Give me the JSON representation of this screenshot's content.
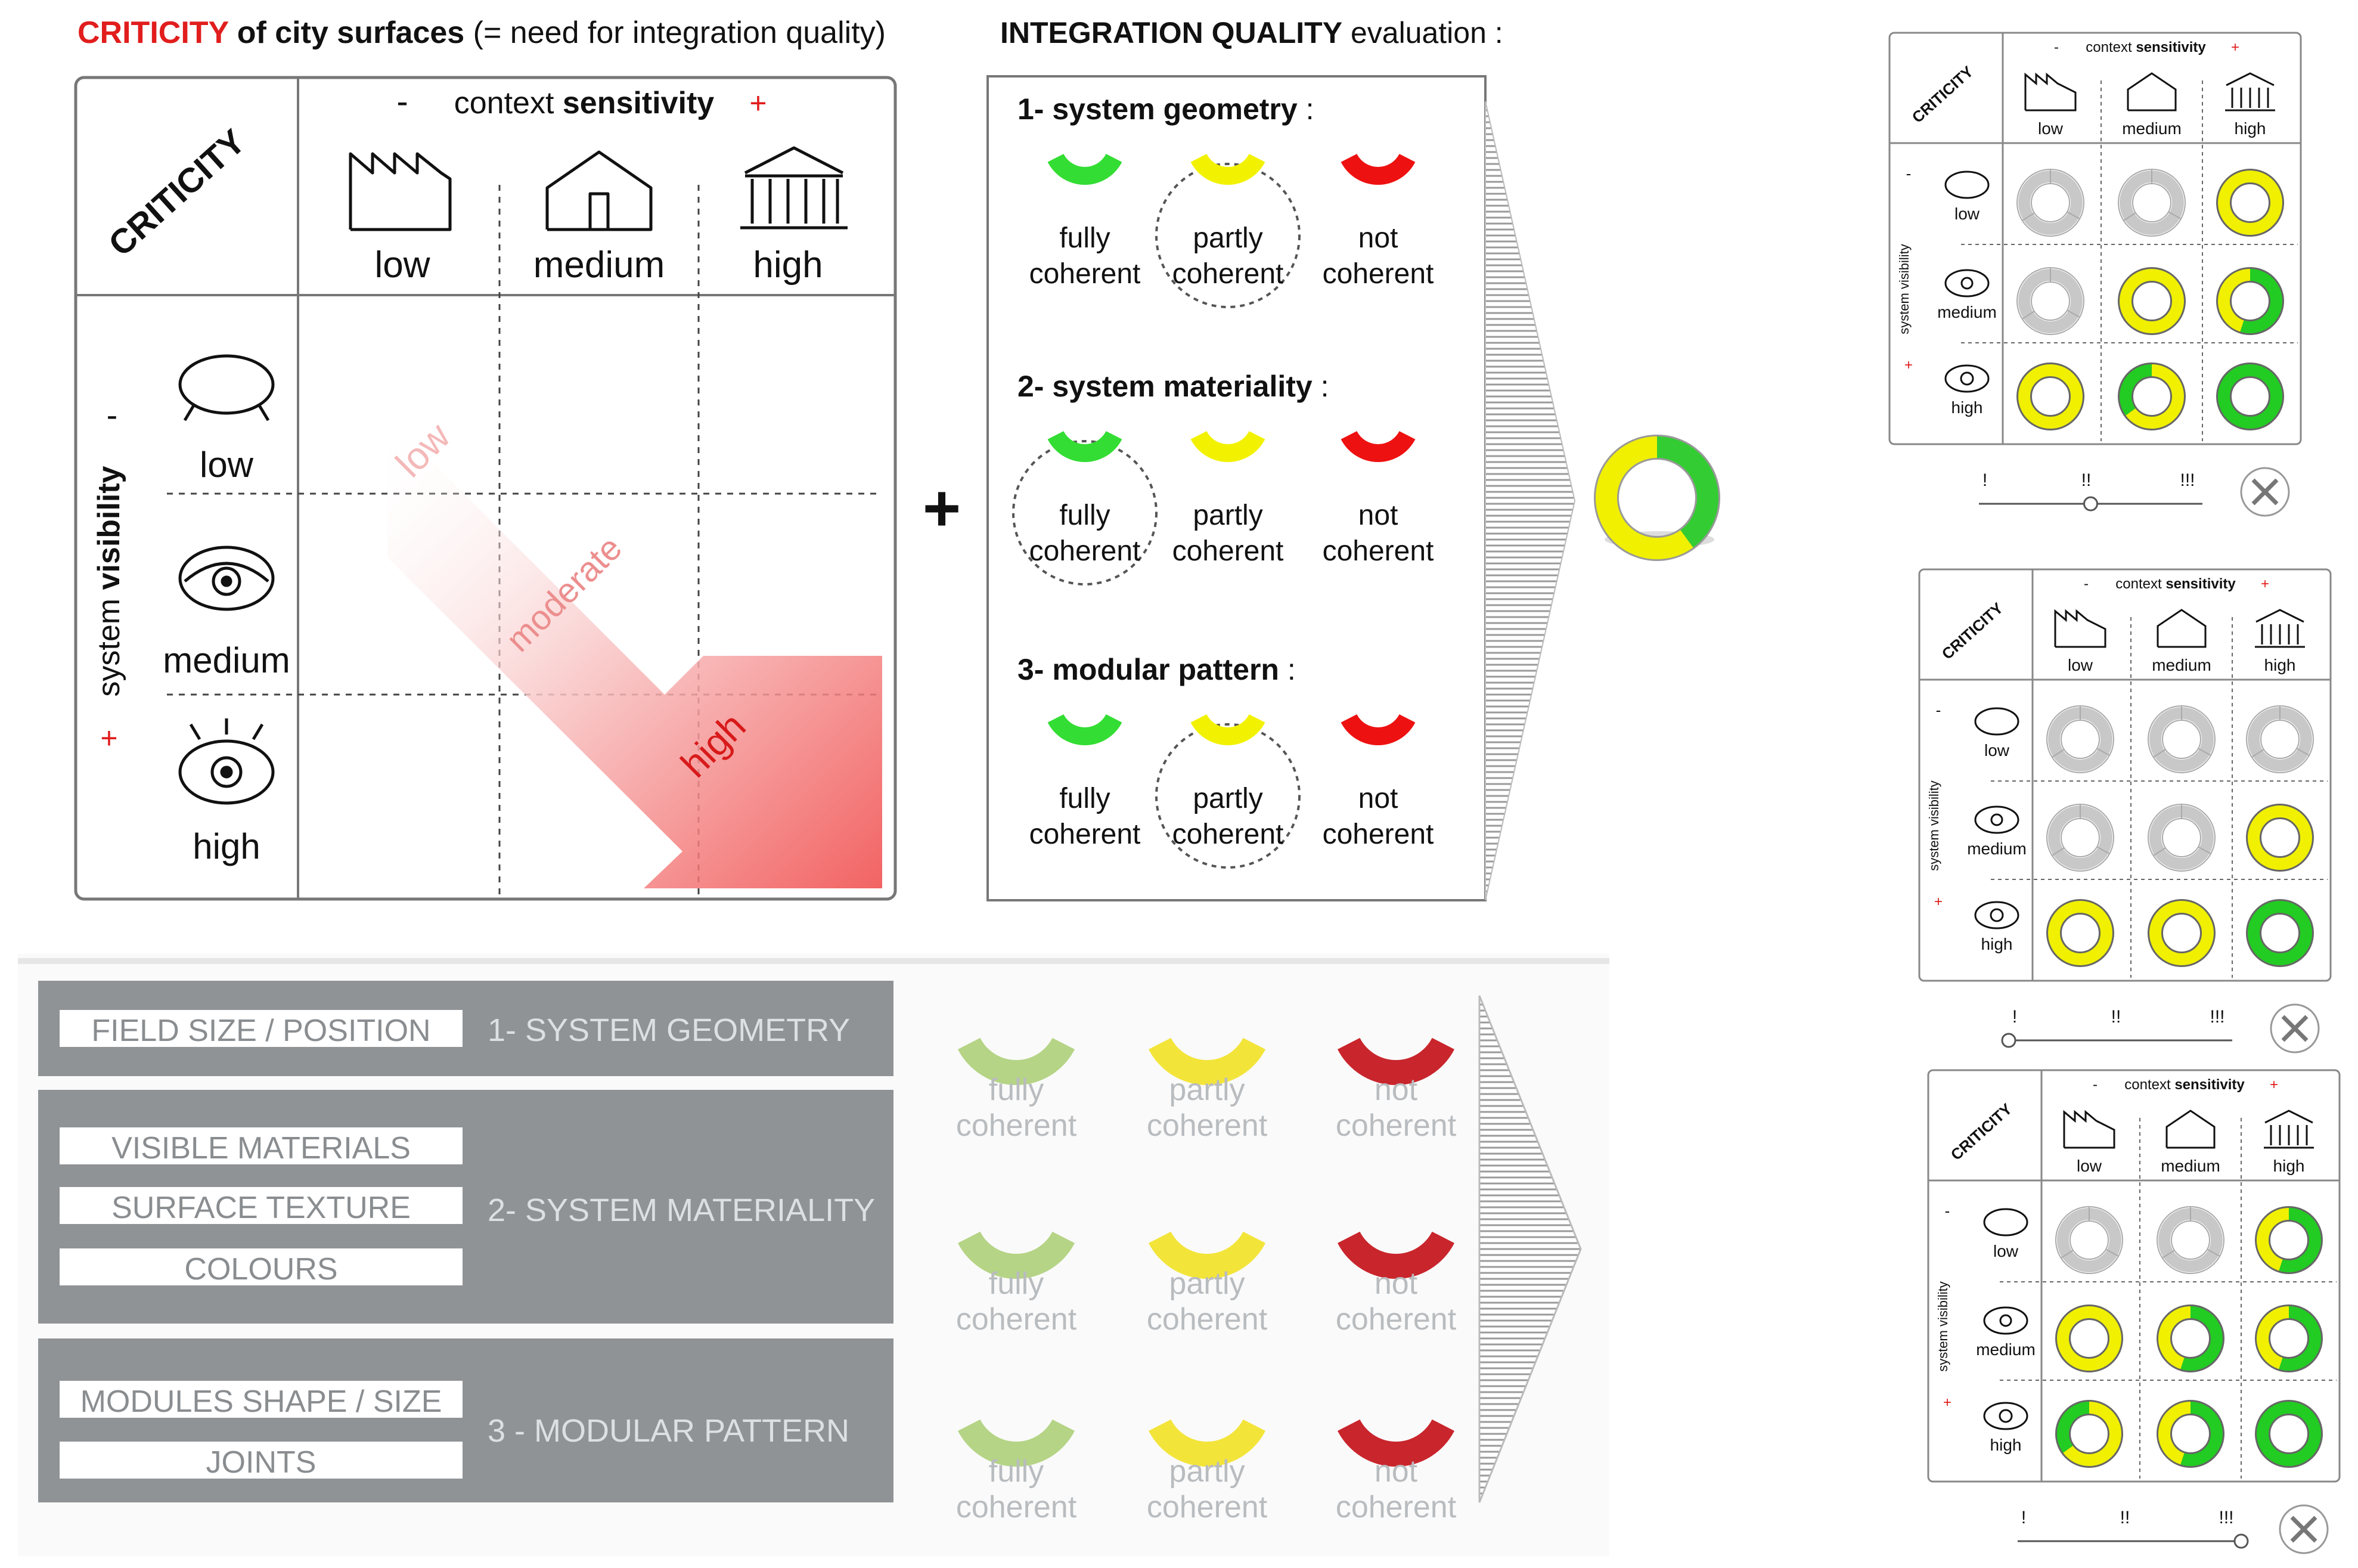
{
  "criticity": {
    "title_accent": "CRITICITY",
    "title_mid": " of city surfaces ",
    "title_tail": "(= need for integration quality)",
    "corner": "CRITICITY",
    "minus": "-",
    "plus": "+",
    "axis_x_pre": "context ",
    "axis_x_bold": "sensitivity",
    "axis_y_pre": "system ",
    "axis_y_bold": "visibility",
    "cols": [
      "low",
      "medium",
      "high"
    ],
    "rows": [
      "low",
      "medium",
      "high"
    ],
    "arrow_labels": [
      "low",
      "moderate",
      "high"
    ]
  },
  "operator": "+",
  "evaluation": {
    "title_bold": "INTEGRATION QUALITY",
    "title_tail": " evaluation :",
    "criteria": [
      {
        "label_num": "1- ",
        "label": "system geometry",
        "suffix": " :",
        "circled": 1
      },
      {
        "label_num": "2- ",
        "label": "system  materiality",
        "suffix": " :",
        "circled": 0
      },
      {
        "label_num": "3- ",
        "label": "modular pattern",
        "suffix": " :",
        "circled": 1
      }
    ],
    "levels": [
      {
        "line1": "fully",
        "line2": "coherent",
        "color": "#33dd33"
      },
      {
        "line1": "partly",
        "line2": "coherent",
        "color": "#f2f200"
      },
      {
        "line1": "not",
        "line2": "coherent",
        "color": "#ee1111"
      }
    ],
    "result_ring": {
      "yellow_fraction": 0.6,
      "green_fraction": 0.4
    }
  },
  "lower": {
    "groups": [
      {
        "items": [
          "FIELD SIZE / POSITION"
        ],
        "label": "1- SYSTEM GEOMETRY"
      },
      {
        "items": [
          "VISIBLE MATERIALS",
          "SURFACE TEXTURE",
          "COLOURS"
        ],
        "label": "2- SYSTEM MATERIALITY"
      },
      {
        "items": [
          "MODULES SHAPE / SIZE",
          "JOINTS"
        ],
        "label": "3 - MODULAR PATTERN"
      }
    ],
    "levels": [
      {
        "line1": "fully",
        "line2": "coherent",
        "color": "#b5d486"
      },
      {
        "line1": "partly",
        "line2": "coherent",
        "color": "#f3e43a"
      },
      {
        "line1": "not",
        "line2": "coherent",
        "color": "#c9252c"
      }
    ]
  },
  "mini": {
    "corner": "CRITICITY",
    "minus": "-",
    "plus": "+",
    "axis_x_pre": "context ",
    "axis_x_bold": "sensitivity",
    "axis_y": "system visibility",
    "cols": [
      "low",
      "medium",
      "high"
    ],
    "rows": [
      "low",
      "medium",
      "high"
    ],
    "slider_ticks": [
      "!",
      "!!",
      "!!!"
    ],
    "tool_icon": "tools-icon",
    "matrices": [
      {
        "slider_position": 0.5,
        "rings": [
          [
            "empty",
            "empty",
            "yellow"
          ],
          [
            "empty",
            "yellow",
            "mixed-green"
          ],
          [
            "yellow",
            "mixed-yellow",
            "green"
          ]
        ]
      },
      {
        "slider_position": 0.0,
        "rings": [
          [
            "empty",
            "empty",
            "empty"
          ],
          [
            "empty",
            "empty",
            "yellow"
          ],
          [
            "yellow",
            "yellow",
            "green"
          ]
        ]
      },
      {
        "slider_position": 1.0,
        "rings": [
          [
            "empty",
            "empty",
            "mixed-green"
          ],
          [
            "yellow",
            "mixed-green",
            "mixed-green"
          ],
          [
            "mixed-yellow",
            "mixed-green",
            "green"
          ]
        ]
      }
    ]
  }
}
